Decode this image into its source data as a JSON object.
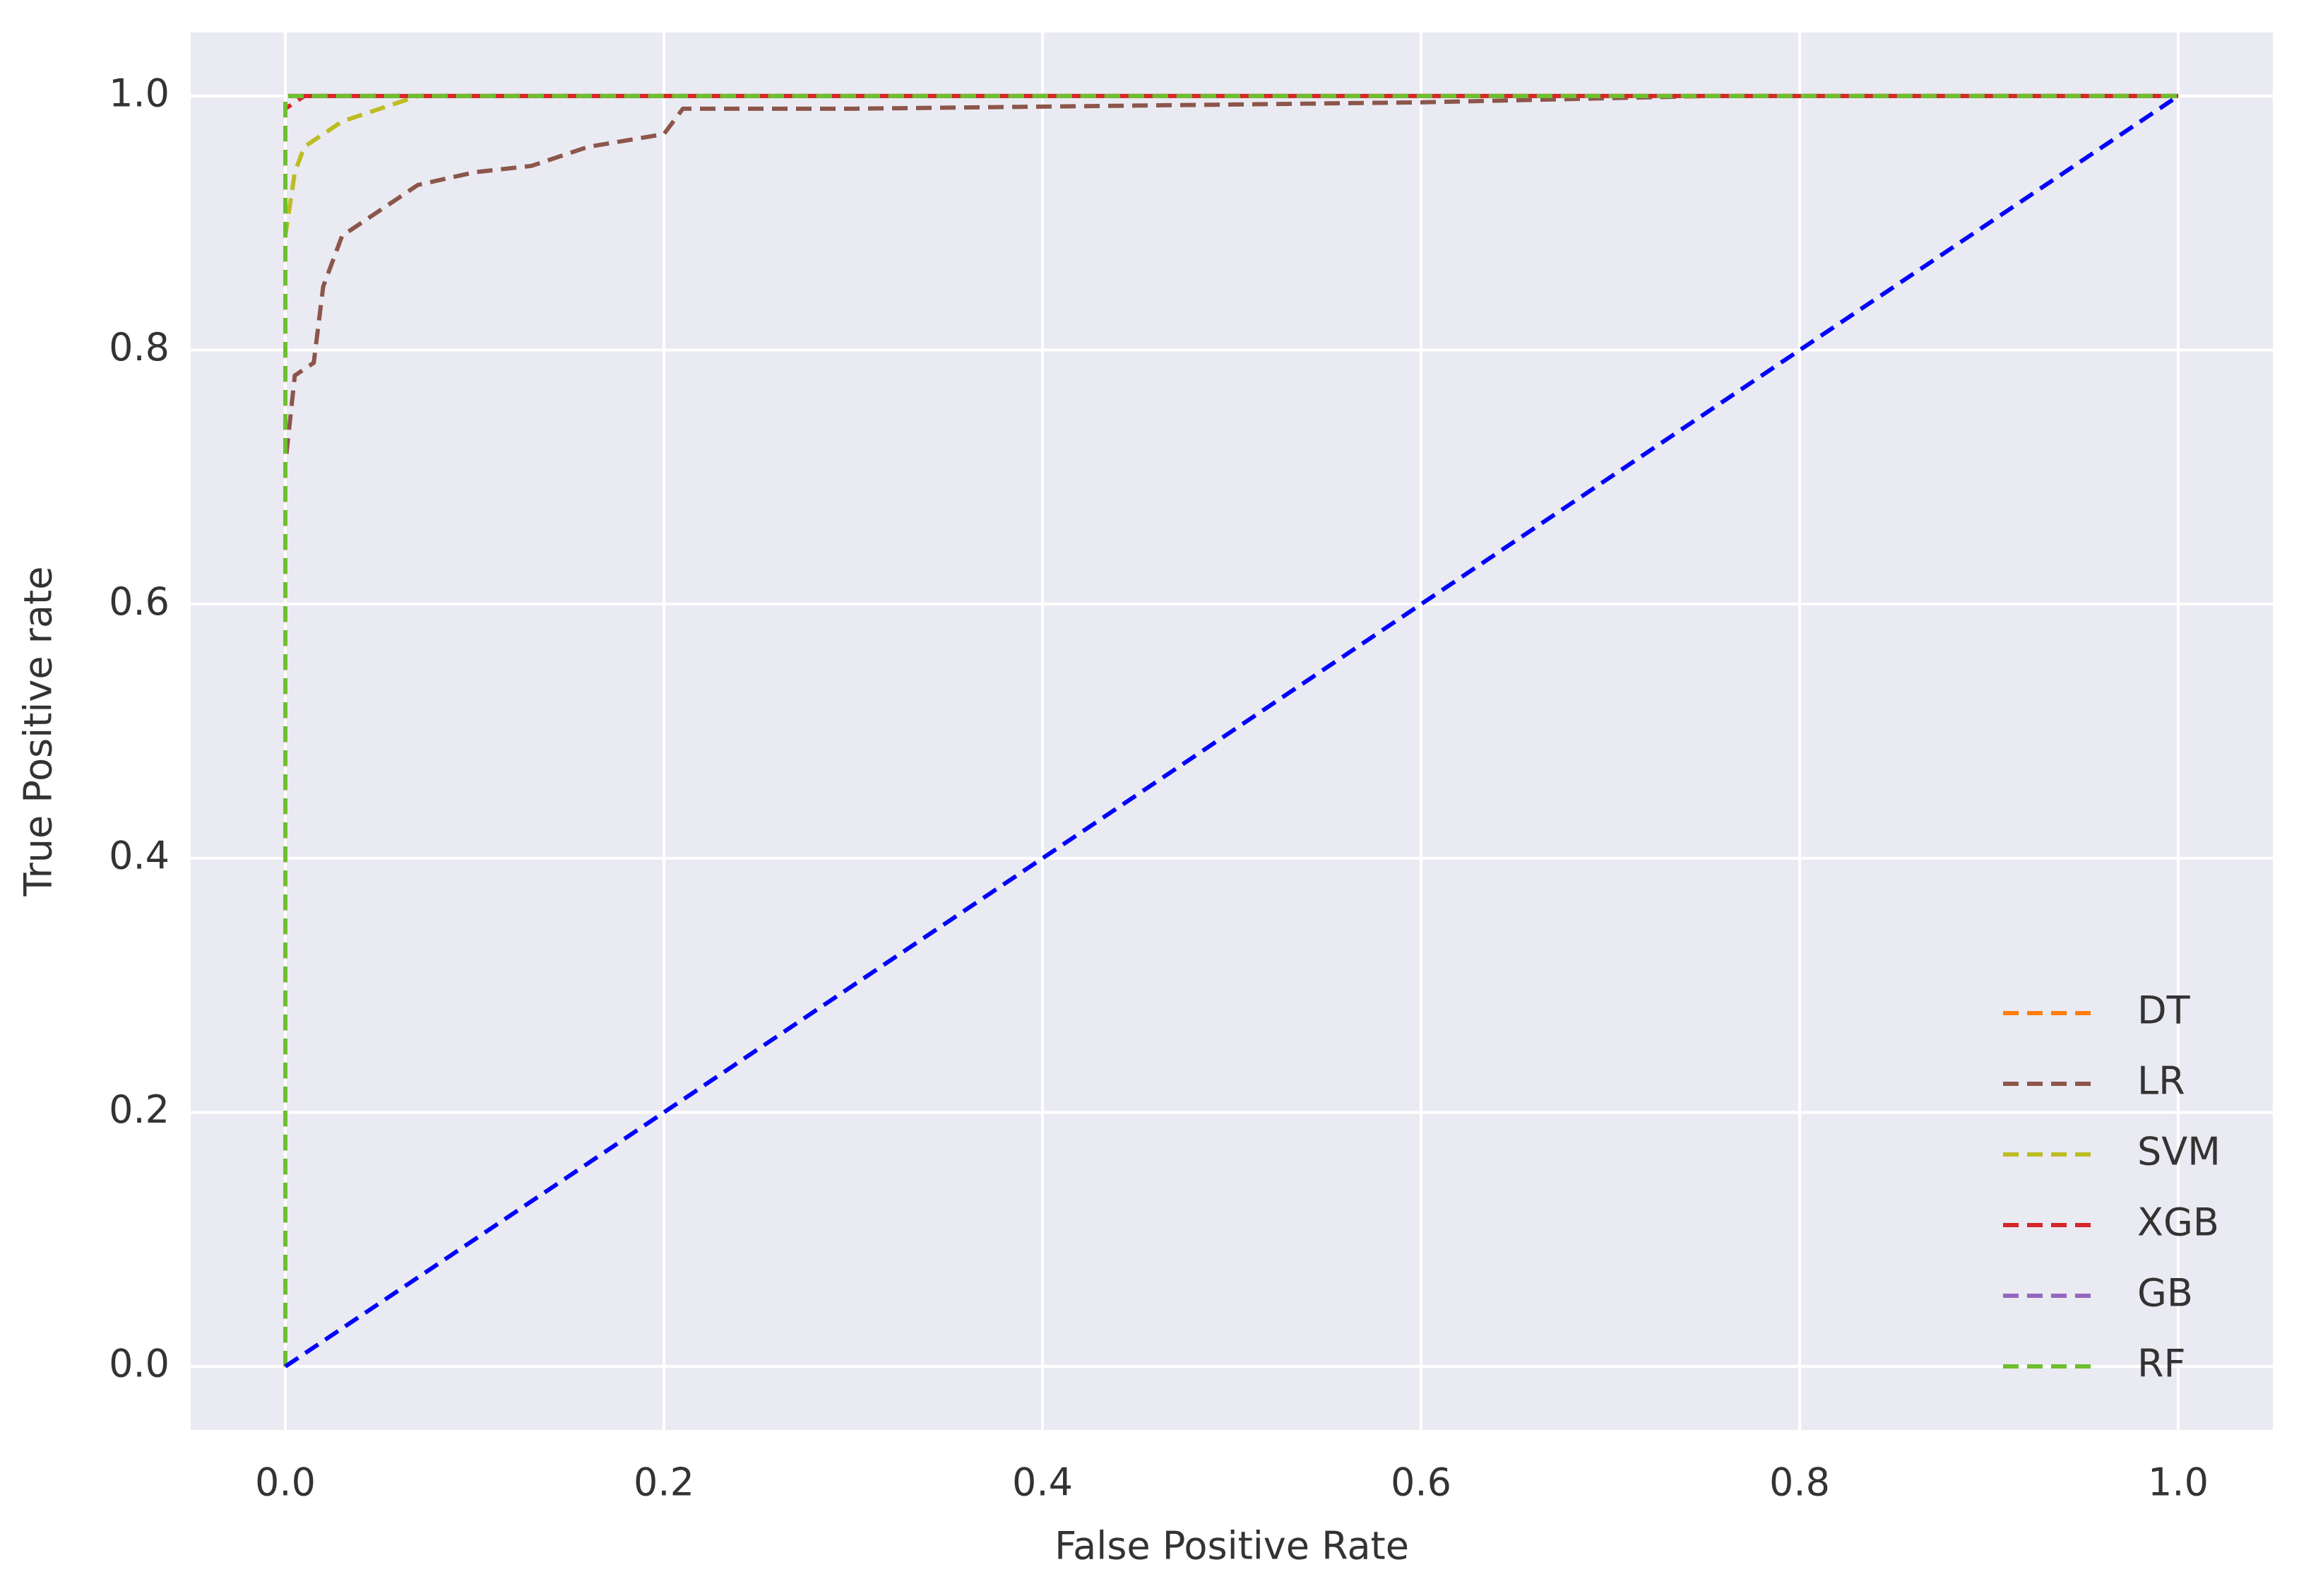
{
  "chart_data": {
    "type": "line",
    "xlabel": "False Positive Rate",
    "ylabel": "True Positive rate",
    "xlim": [
      -0.05,
      1.05
    ],
    "ylim": [
      -0.05,
      1.05
    ],
    "xticks": [
      {
        "value": 0,
        "label": "0.0"
      },
      0.2,
      0.4,
      0.6,
      0.8,
      {
        "value": 1,
        "label": "1.0"
      }
    ],
    "yticks": [
      {
        "value": 0,
        "label": "0.0"
      },
      0.2,
      0.4,
      0.6,
      0.8,
      {
        "value": 1,
        "label": "1.0"
      }
    ],
    "grid": true,
    "legend": "lower right",
    "linestyle": "dashed",
    "series": [
      {
        "name": "DT",
        "color": "#ff7f0e",
        "x": [
          0,
          0,
          1
        ],
        "values": [
          0,
          1,
          1
        ]
      },
      {
        "name": "LR",
        "color": "#8c564b",
        "x": [
          0,
          0,
          0.005,
          0.015,
          0.02,
          0.03,
          0.05,
          0.07,
          0.1,
          0.13,
          0.16,
          0.2,
          0.21,
          0.3,
          0.6,
          0.75,
          1
        ],
        "values": [
          0,
          0.71,
          0.78,
          0.79,
          0.85,
          0.89,
          0.91,
          0.93,
          0.94,
          0.945,
          0.96,
          0.97,
          0.99,
          0.99,
          0.995,
          1,
          1
        ]
      },
      {
        "name": "SVM",
        "color": "#bcbd22",
        "x": [
          0,
          0,
          0.005,
          0.01,
          0.02,
          0.03,
          0.05,
          0.07,
          1
        ],
        "values": [
          0,
          0.89,
          0.94,
          0.96,
          0.97,
          0.98,
          0.99,
          1,
          1
        ]
      },
      {
        "name": "XGB",
        "color": "#d62728",
        "x": [
          0,
          0,
          0.01,
          1
        ],
        "values": [
          0,
          0.99,
          1,
          1
        ]
      },
      {
        "name": "GB",
        "color": "#9467bd",
        "x": [
          0,
          0,
          1
        ],
        "values": [
          0,
          1,
          1
        ]
      },
      {
        "name": "RF",
        "color": "#6fbf2e",
        "x": [
          0,
          0,
          1
        ],
        "values": [
          0,
          1,
          1
        ]
      },
      {
        "color": "#0000ff",
        "x": [
          0,
          1
        ],
        "values": [
          0,
          1
        ]
      }
    ]
  }
}
